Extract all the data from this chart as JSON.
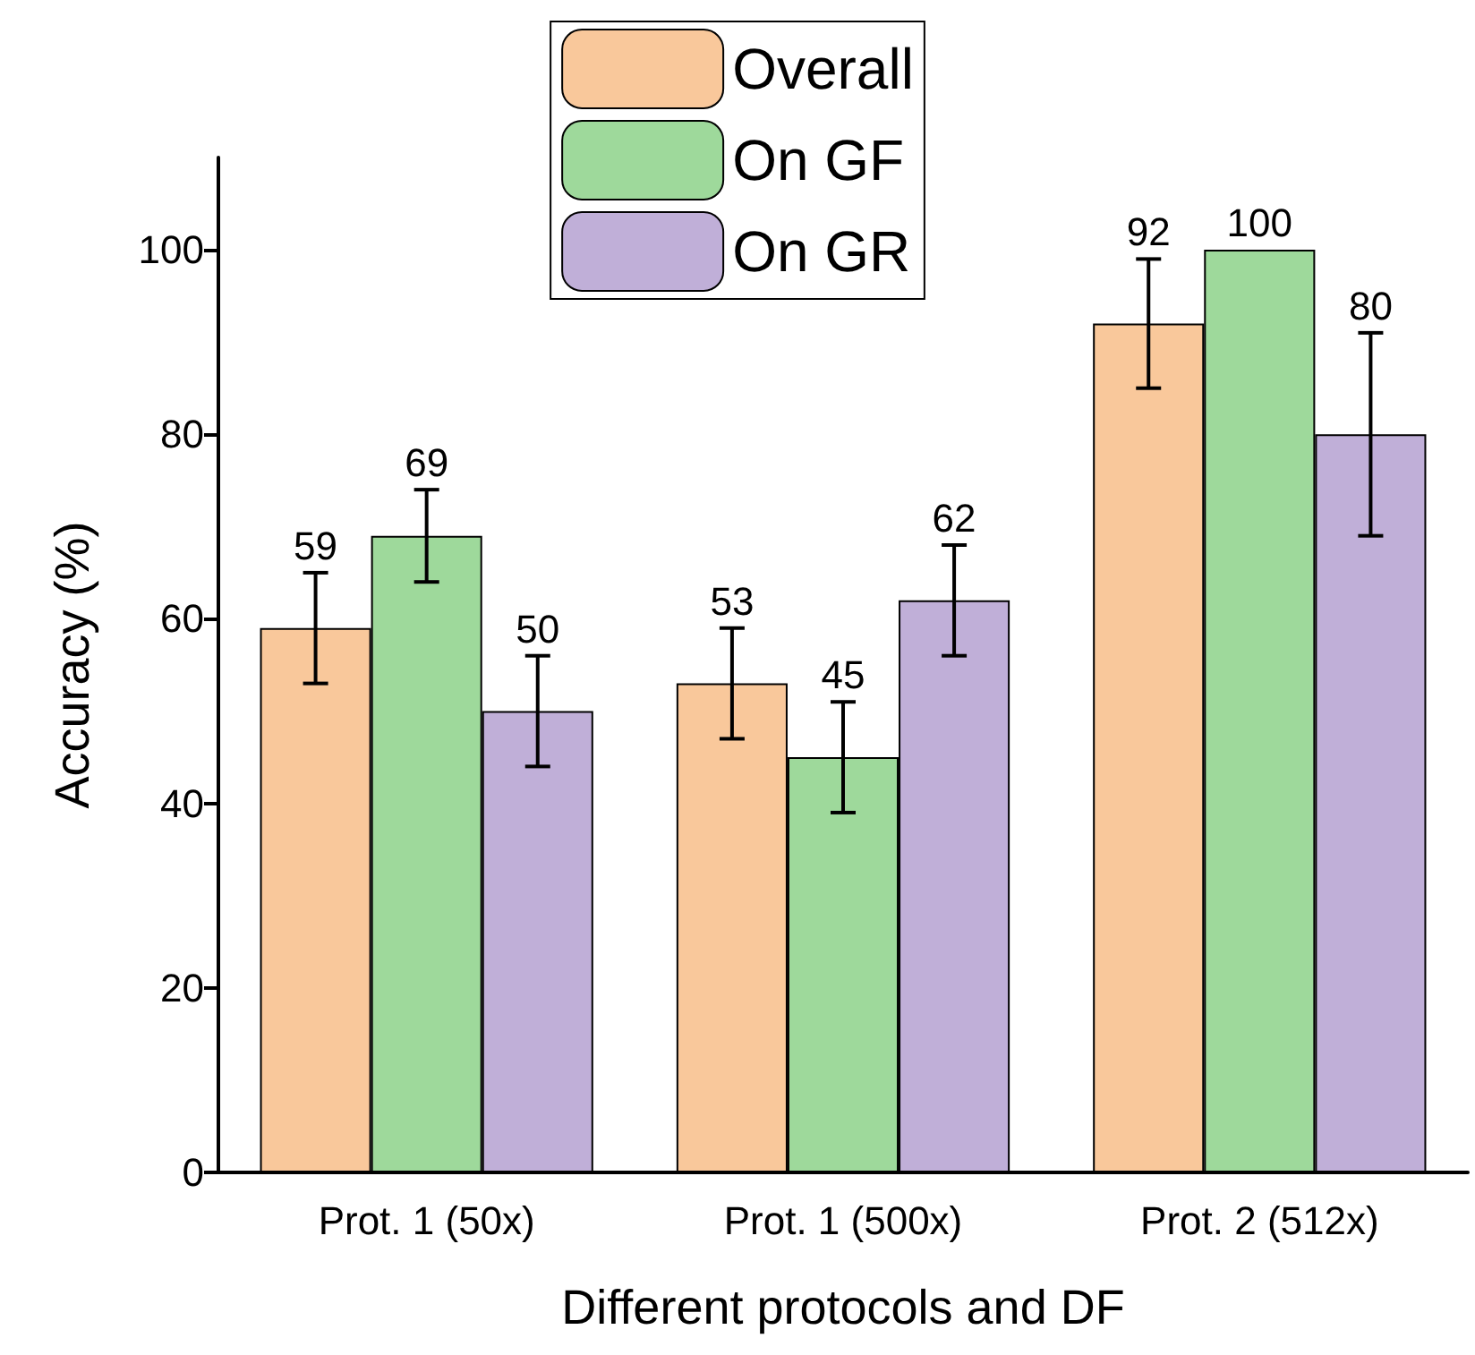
{
  "chart_data": {
    "type": "bar",
    "xlabel": "Different protocols and DF",
    "ylabel": "Accuracy (%)",
    "categories": [
      "Prot. 1 (50x)",
      "Prot. 1 (500x)",
      "Prot. 2 (512x)"
    ],
    "series": [
      {
        "name": "Overall",
        "color": "#f9c89b",
        "values": [
          59,
          53,
          92
        ],
        "errors": [
          6,
          6,
          7
        ]
      },
      {
        "name": "On GF",
        "color": "#9ed99b",
        "values": [
          69,
          45,
          100
        ],
        "errors": [
          5,
          6,
          null
        ]
      },
      {
        "name": "On GR",
        "color": "#c0afd8",
        "values": [
          50,
          62,
          80
        ],
        "errors": [
          6,
          6,
          11
        ]
      }
    ],
    "ylim": [
      0,
      110
    ],
    "yticks": [
      0,
      20,
      40,
      60,
      80,
      100
    ],
    "data_labels": true,
    "legend": "top",
    "grid": false
  }
}
